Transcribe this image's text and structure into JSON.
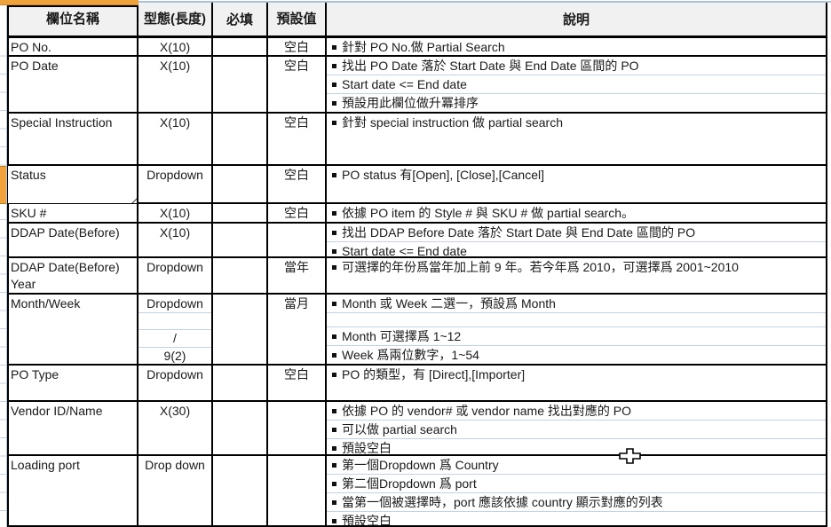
{
  "header": {
    "columns": [
      "欄位名稱",
      "型態(長度)",
      "必填",
      "預設值",
      "說明"
    ]
  },
  "rows": [
    {
      "name": "PO No.",
      "type": [
        "X(10)"
      ],
      "required": "",
      "default": "空白",
      "desc": [
        "針對 PO No.做 Partial Search"
      ]
    },
    {
      "name": "PO Date",
      "type": [
        "X(10)"
      ],
      "required": "",
      "default": "空白",
      "desc": [
        "找出 PO Date 落於 Start Date 與 End Date 區間的 PO",
        "Start date <= End date",
        "預設用此欄位做升冪排序"
      ]
    },
    {
      "name": "Special Instruction",
      "type": [
        "X(10)"
      ],
      "required": "",
      "default": "空白",
      "desc": [
        "針對 special instruction 做 partial search"
      ]
    },
    {
      "name": "Status",
      "type": [
        "Dropdown"
      ],
      "required": "",
      "default": "空白",
      "selected": true,
      "desc": [
        "PO status 有[Open], [Close],[Cancel]"
      ]
    },
    {
      "name": "SKU #",
      "type": [
        "X(10)"
      ],
      "required": "",
      "default": "空白",
      "desc": [
        "依據 PO item 的 Style # 與 SKU # 做 partial search。"
      ]
    },
    {
      "name": "DDAP Date(Before)",
      "type": [
        "X(10)"
      ],
      "required": "",
      "default": "",
      "desc": [
        "找出 DDAP Before Date 落於 Start Date 與 End Date 區間的 PO",
        "Start date <= End date"
      ]
    },
    {
      "name": "DDAP Date(Before) Year",
      "type": [
        "Dropdown"
      ],
      "required": "",
      "default": "當年",
      "desc": [
        "可選擇的年份爲當年加上前 9 年。若今年爲 2010，可選擇爲 2001~2010"
      ]
    },
    {
      "name": "Month/Week",
      "type": [
        "Dropdown",
        "",
        "/",
        "9(2)"
      ],
      "required": "",
      "default": "當月",
      "desc": [
        "Month 或 Week 二選一，預設爲 Month",
        "",
        "Month 可選擇爲 1~12",
        "Week 爲兩位數字，1~54"
      ]
    },
    {
      "name": "PO Type",
      "type": [
        "Dropdown"
      ],
      "required": "",
      "default": "空白",
      "desc": [
        "PO 的類型，有 [Direct],[Importer]"
      ]
    },
    {
      "name": "Vendor ID/Name",
      "type": [
        "X(30)"
      ],
      "required": "",
      "default": "",
      "desc": [
        "依據 PO 的 vendor# 或 vendor name 找出對應的 PO",
        "可以做 partial search",
        "預設空白"
      ]
    },
    {
      "name": "Loading port",
      "type": [
        "Drop down"
      ],
      "required": "",
      "default": "",
      "desc": [
        "第一個Dropdown 爲 Country",
        "第二個Dropdown 爲 port",
        "當第一個被選擇時，port 應該依據 country 顯示對應的列表",
        "預設空白"
      ]
    }
  ],
  "colors": {
    "accent_orange": "#F0A23C",
    "gridline_blue": "#C3D2E6",
    "border_black": "#000000",
    "header_bg": "#F1F1F1"
  }
}
